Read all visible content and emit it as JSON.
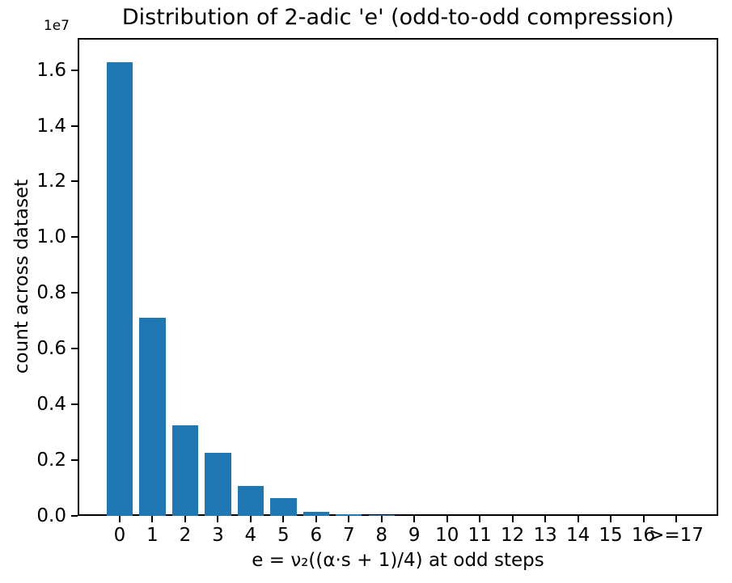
{
  "chart_data": {
    "type": "bar",
    "title": "Distribution of 2-adic 'e' (odd-to-odd compression)",
    "xlabel": "e = ν₂((α·s + 1)/4) at odd steps",
    "ylabel": "count across dataset",
    "offset_label": "1e7",
    "categories": [
      "0",
      "1",
      "2",
      "3",
      "4",
      "5",
      "6",
      "7",
      "8",
      "9",
      "10",
      "11",
      "12",
      "13",
      "14",
      "15",
      "16",
      ">=17"
    ],
    "values": [
      16270000,
      7120000,
      3240000,
      2270000,
      1080000,
      630000,
      140000,
      45000,
      18000,
      0,
      0,
      0,
      0,
      0,
      0,
      0,
      0,
      0
    ],
    "ylim": [
      0,
      17150000
    ],
    "yticks": [
      0,
      2000000,
      4000000,
      6000000,
      8000000,
      10000000,
      12000000,
      14000000,
      16000000
    ],
    "ytick_labels": [
      "0.0",
      "0.2",
      "0.4",
      "0.6",
      "0.8",
      "1.0",
      "1.2",
      "1.4",
      "1.6"
    ],
    "bar_color": "#1f77b4",
    "axis_color": "#000000",
    "background_color": "#ffffff",
    "grid": false,
    "legend": null
  }
}
